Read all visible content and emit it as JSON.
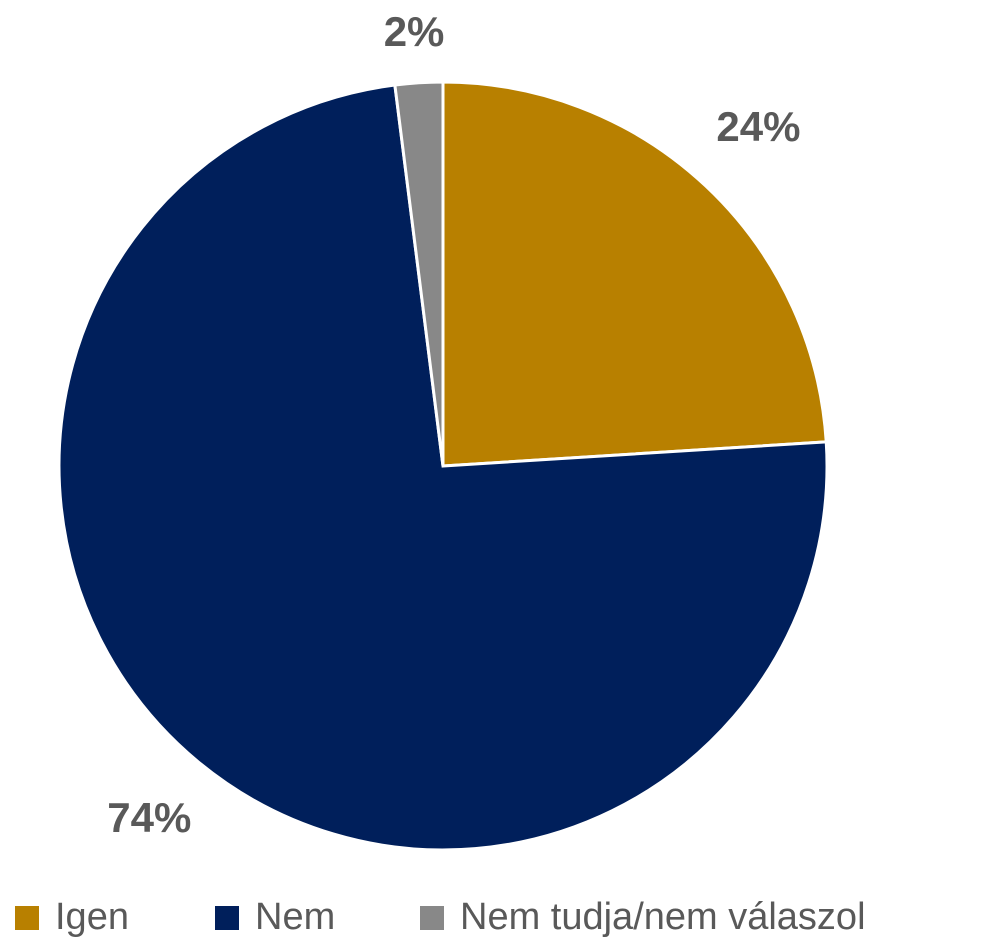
{
  "chart_data": {
    "type": "pie",
    "categories": [
      "Igen",
      "Nem",
      "Nem tudja/nem válaszol"
    ],
    "values": [
      24,
      74,
      2
    ],
    "value_labels": [
      "24%",
      "74%",
      "2%"
    ],
    "colors": [
      "#b88000",
      "#001f5b",
      "#888888"
    ],
    "legend": "bottom"
  }
}
